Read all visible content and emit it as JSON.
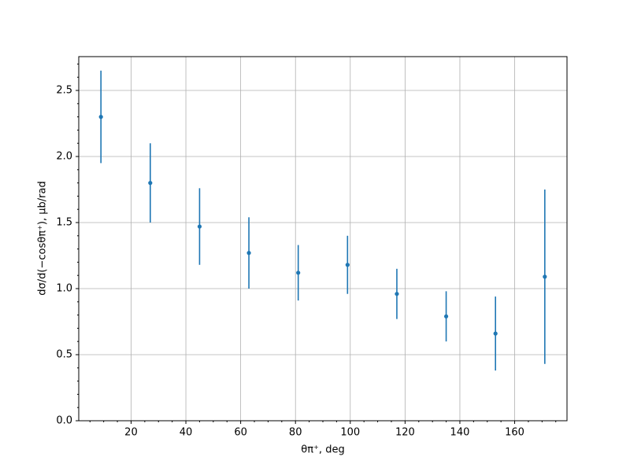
{
  "chart_data": {
    "type": "errorbar",
    "xlabel": "θπ⁺, deg",
    "ylabel": "dσ/d(−cosθπ⁺), μb/rad",
    "x": [
      9,
      27,
      45,
      63,
      81,
      99,
      117,
      135,
      153,
      171
    ],
    "values": [
      2.3,
      1.8,
      1.47,
      1.27,
      1.12,
      1.18,
      0.96,
      0.79,
      0.66,
      1.09
    ],
    "errors": [
      0.35,
      0.3,
      0.29,
      0.27,
      0.21,
      0.22,
      0.19,
      0.19,
      0.28,
      0.66
    ],
    "color": "#1f77b4",
    "xlim": [
      0.9,
      179.1
    ],
    "ylim": [
      0,
      2.756
    ],
    "xticks": [
      20,
      40,
      60,
      80,
      100,
      120,
      140,
      160
    ],
    "yticks": [
      {
        "value": 0,
        "label": "0.0"
      },
      0.5,
      {
        "value": 1,
        "label": "1.0"
      },
      1.5,
      {
        "value": 2,
        "label": "2.0"
      },
      2.5
    ],
    "xminorticks": [
      5,
      10,
      15,
      25,
      30,
      35,
      45,
      50,
      55,
      65,
      70,
      75,
      85,
      90,
      95,
      105,
      110,
      115,
      125,
      130,
      135,
      145,
      150,
      155,
      165,
      170,
      175
    ],
    "yminorticks": [
      0.1,
      0.2,
      0.3,
      0.4,
      0.6,
      0.7,
      0.8,
      0.9,
      1.1,
      1.2,
      1.3,
      1.4,
      1.6,
      1.7,
      1.8,
      1.9,
      2.1,
      2.2,
      2.3,
      2.4,
      2.6,
      2.7
    ],
    "grid": true
  }
}
